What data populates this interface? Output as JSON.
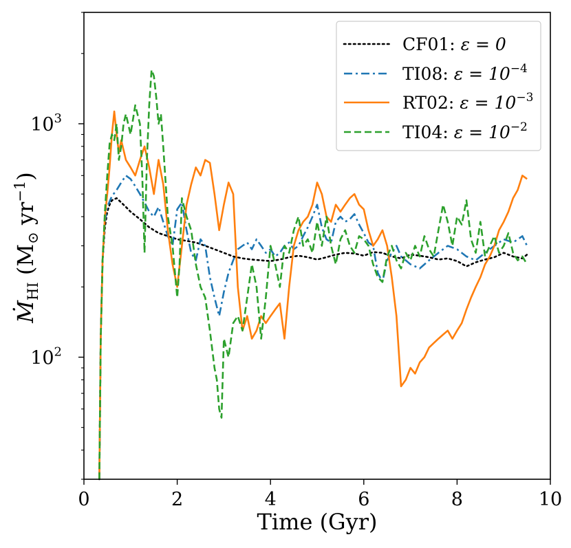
{
  "chart_data": {
    "type": "line",
    "xlabel": "Time (Gyr)",
    "ylabel": "Ṁ",
    "ylabel_sub": "HI",
    "ylabel_units": " (M",
    "ylabel_units_sun": "⊙",
    "ylabel_units_rest": " yr",
    "ylabel_units_exp": "−1",
    "ylabel_units_close": ")",
    "xlim": [
      0,
      10
    ],
    "ylim": [
      30,
      3000
    ],
    "yscale": "log",
    "x_ticks": [
      "0",
      "2",
      "4",
      "6",
      "8",
      "10"
    ],
    "x_tick_values": [
      0,
      2,
      4,
      6,
      8,
      10
    ],
    "y_major_ticks": [
      100,
      1000
    ],
    "y_tick_labels": [
      {
        "value": 100,
        "base": "10",
        "exp": "2"
      },
      {
        "value": 1000,
        "base": "10",
        "exp": "3"
      }
    ],
    "legend_position": "top-right",
    "series": [
      {
        "name": "CF01: ε = 0",
        "label_main": "CF01: ",
        "label_eps": "ε = 0",
        "label_exp": "",
        "color": "#000000",
        "style": "dotted",
        "x": [
          0.33,
          0.36,
          0.4,
          0.45,
          0.5,
          0.55,
          0.6,
          0.7,
          0.8,
          0.9,
          1.0,
          1.2,
          1.4,
          1.6,
          1.8,
          2.0,
          2.2,
          2.4,
          2.6,
          2.8,
          3.0,
          3.2,
          3.4,
          3.6,
          3.8,
          4.0,
          4.2,
          4.4,
          4.6,
          4.8,
          5.0,
          5.2,
          5.4,
          5.6,
          5.8,
          6.0,
          6.2,
          6.4,
          6.6,
          6.8,
          7.0,
          7.2,
          7.4,
          7.6,
          7.8,
          8.0,
          8.2,
          8.4,
          8.6,
          8.8,
          9.0,
          9.2,
          9.4,
          9.5
        ],
        "y": [
          30,
          120,
          260,
          360,
          420,
          450,
          470,
          480,
          460,
          440,
          420,
          390,
          360,
          340,
          330,
          320,
          315,
          310,
          300,
          290,
          280,
          270,
          265,
          262,
          260,
          258,
          262,
          268,
          272,
          268,
          262,
          268,
          275,
          280,
          278,
          272,
          282,
          280,
          270,
          265,
          275,
          272,
          268,
          262,
          265,
          258,
          245,
          255,
          262,
          268,
          280,
          270,
          265,
          275
        ]
      },
      {
        "name": "TI08: ε = 10^-4",
        "label_main": "TI08: ",
        "label_eps": "ε = 10",
        "label_exp": "−4",
        "color": "#1f77b4",
        "style": "dashdot",
        "x": [
          0.33,
          0.36,
          0.4,
          0.45,
          0.5,
          0.6,
          0.7,
          0.8,
          0.9,
          1.0,
          1.1,
          1.2,
          1.3,
          1.4,
          1.5,
          1.6,
          1.7,
          1.8,
          1.9,
          2.0,
          2.1,
          2.2,
          2.3,
          2.4,
          2.5,
          2.6,
          2.7,
          2.8,
          2.9,
          3.0,
          3.1,
          3.2,
          3.3,
          3.4,
          3.5,
          3.6,
          3.7,
          3.8,
          3.9,
          4.0,
          4.1,
          4.2,
          4.3,
          4.4,
          4.5,
          4.6,
          4.7,
          4.8,
          4.9,
          5.0,
          5.1,
          5.2,
          5.3,
          5.4,
          5.5,
          5.6,
          5.7,
          5.8,
          5.9,
          6.0,
          6.1,
          6.2,
          6.3,
          6.4,
          6.5,
          6.6,
          6.7,
          6.8,
          6.9,
          7.0,
          7.2,
          7.4,
          7.6,
          7.8,
          8.0,
          8.2,
          8.4,
          8.6,
          8.8,
          9.0,
          9.2,
          9.4,
          9.5
        ],
        "y": [
          30,
          120,
          260,
          380,
          440,
          490,
          520,
          560,
          600,
          580,
          540,
          500,
          460,
          420,
          400,
          440,
          380,
          330,
          300,
          430,
          460,
          350,
          280,
          260,
          320,
          300,
          220,
          180,
          150,
          190,
          230,
          260,
          290,
          300,
          310,
          290,
          320,
          300,
          280,
          290,
          270,
          280,
          300,
          310,
          290,
          300,
          330,
          360,
          400,
          450,
          360,
          320,
          310,
          380,
          400,
          380,
          390,
          410,
          370,
          340,
          310,
          300,
          230,
          210,
          260,
          280,
          300,
          270,
          260,
          250,
          240,
          260,
          280,
          300,
          290,
          270,
          260,
          280,
          300,
          320,
          310,
          330,
          300
        ]
      },
      {
        "name": "RT02: ε = 10^-3",
        "label_main": "RT02: ",
        "label_eps": "ε = 10",
        "label_exp": "−3",
        "color": "#ff7f0e",
        "style": "solid",
        "x": [
          0.33,
          0.36,
          0.4,
          0.45,
          0.5,
          0.55,
          0.6,
          0.65,
          0.7,
          0.75,
          0.8,
          0.9,
          1.0,
          1.1,
          1.2,
          1.3,
          1.4,
          1.5,
          1.6,
          1.7,
          1.8,
          1.9,
          2.0,
          2.1,
          2.2,
          2.3,
          2.4,
          2.5,
          2.6,
          2.7,
          2.8,
          2.9,
          3.0,
          3.1,
          3.2,
          3.3,
          3.4,
          3.5,
          3.6,
          3.7,
          3.8,
          3.9,
          4.0,
          4.1,
          4.2,
          4.3,
          4.4,
          4.5,
          4.6,
          4.7,
          4.8,
          4.9,
          5.0,
          5.1,
          5.2,
          5.3,
          5.4,
          5.5,
          5.6,
          5.7,
          5.8,
          5.9,
          6.0,
          6.1,
          6.2,
          6.3,
          6.4,
          6.5,
          6.6,
          6.7,
          6.8,
          6.9,
          7.0,
          7.1,
          7.2,
          7.3,
          7.4,
          7.5,
          7.6,
          7.7,
          7.8,
          7.9,
          8.0,
          8.1,
          8.2,
          8.3,
          8.4,
          8.5,
          8.6,
          8.7,
          8.8,
          8.9,
          9.0,
          9.1,
          9.2,
          9.3,
          9.4,
          9.5
        ],
        "y": [
          30,
          120,
          260,
          400,
          500,
          650,
          900,
          1130,
          900,
          750,
          850,
          700,
          650,
          600,
          700,
          800,
          650,
          500,
          700,
          550,
          350,
          250,
          200,
          300,
          450,
          550,
          650,
          600,
          700,
          680,
          500,
          350,
          450,
          560,
          500,
          200,
          130,
          150,
          120,
          130,
          150,
          140,
          150,
          160,
          170,
          120,
          200,
          300,
          350,
          380,
          400,
          450,
          560,
          500,
          400,
          380,
          450,
          420,
          450,
          480,
          500,
          450,
          430,
          350,
          300,
          320,
          350,
          300,
          220,
          150,
          75,
          80,
          90,
          85,
          95,
          100,
          110,
          115,
          120,
          125,
          130,
          120,
          130,
          140,
          160,
          180,
          200,
          220,
          250,
          270,
          300,
          350,
          380,
          420,
          480,
          520,
          600,
          580
        ]
      },
      {
        "name": "TI04: ε = 10^-2",
        "label_main": "TI04: ",
        "label_eps": "ε = 10",
        "label_exp": "−2",
        "color": "#2ca02c",
        "style": "dashed",
        "x": [
          0.33,
          0.36,
          0.4,
          0.45,
          0.5,
          0.55,
          0.6,
          0.65,
          0.7,
          0.75,
          0.8,
          0.85,
          0.9,
          1.0,
          1.1,
          1.2,
          1.25,
          1.3,
          1.35,
          1.4,
          1.45,
          1.5,
          1.55,
          1.6,
          1.65,
          1.7,
          1.8,
          1.9,
          2.0,
          2.05,
          2.1,
          2.2,
          2.3,
          2.4,
          2.5,
          2.6,
          2.7,
          2.8,
          2.85,
          2.9,
          2.95,
          3.0,
          3.1,
          3.2,
          3.3,
          3.4,
          3.5,
          3.6,
          3.7,
          3.8,
          3.9,
          4.0,
          4.1,
          4.2,
          4.3,
          4.4,
          4.5,
          4.6,
          4.7,
          4.8,
          4.9,
          5.0,
          5.1,
          5.2,
          5.3,
          5.4,
          5.5,
          5.6,
          5.7,
          5.8,
          5.9,
          6.0,
          6.1,
          6.2,
          6.3,
          6.4,
          6.5,
          6.6,
          6.7,
          6.8,
          6.9,
          7.0,
          7.1,
          7.2,
          7.3,
          7.4,
          7.5,
          7.6,
          7.7,
          7.8,
          7.9,
          8.0,
          8.1,
          8.2,
          8.3,
          8.4,
          8.5,
          8.6,
          8.7,
          8.8,
          8.9,
          9.0,
          9.1,
          9.2,
          9.3,
          9.4,
          9.5
        ],
        "y": [
          30,
          120,
          260,
          420,
          600,
          820,
          900,
          850,
          1000,
          700,
          800,
          1000,
          1100,
          900,
          1200,
          1000,
          600,
          280,
          700,
          1200,
          1700,
          1600,
          1300,
          1000,
          1100,
          800,
          400,
          300,
          180,
          250,
          480,
          400,
          350,
          250,
          200,
          180,
          130,
          90,
          80,
          60,
          55,
          120,
          100,
          140,
          150,
          130,
          180,
          250,
          200,
          120,
          180,
          300,
          250,
          200,
          300,
          280,
          350,
          400,
          300,
          320,
          280,
          380,
          300,
          400,
          300,
          250,
          320,
          350,
          300,
          280,
          330,
          320,
          300,
          250,
          220,
          210,
          270,
          300,
          260,
          240,
          280,
          260,
          300,
          270,
          330,
          290,
          270,
          350,
          450,
          380,
          300,
          400,
          370,
          470,
          320,
          280,
          380,
          270,
          300,
          330,
          280,
          300,
          340,
          280,
          260,
          270,
          250
        ]
      }
    ]
  }
}
